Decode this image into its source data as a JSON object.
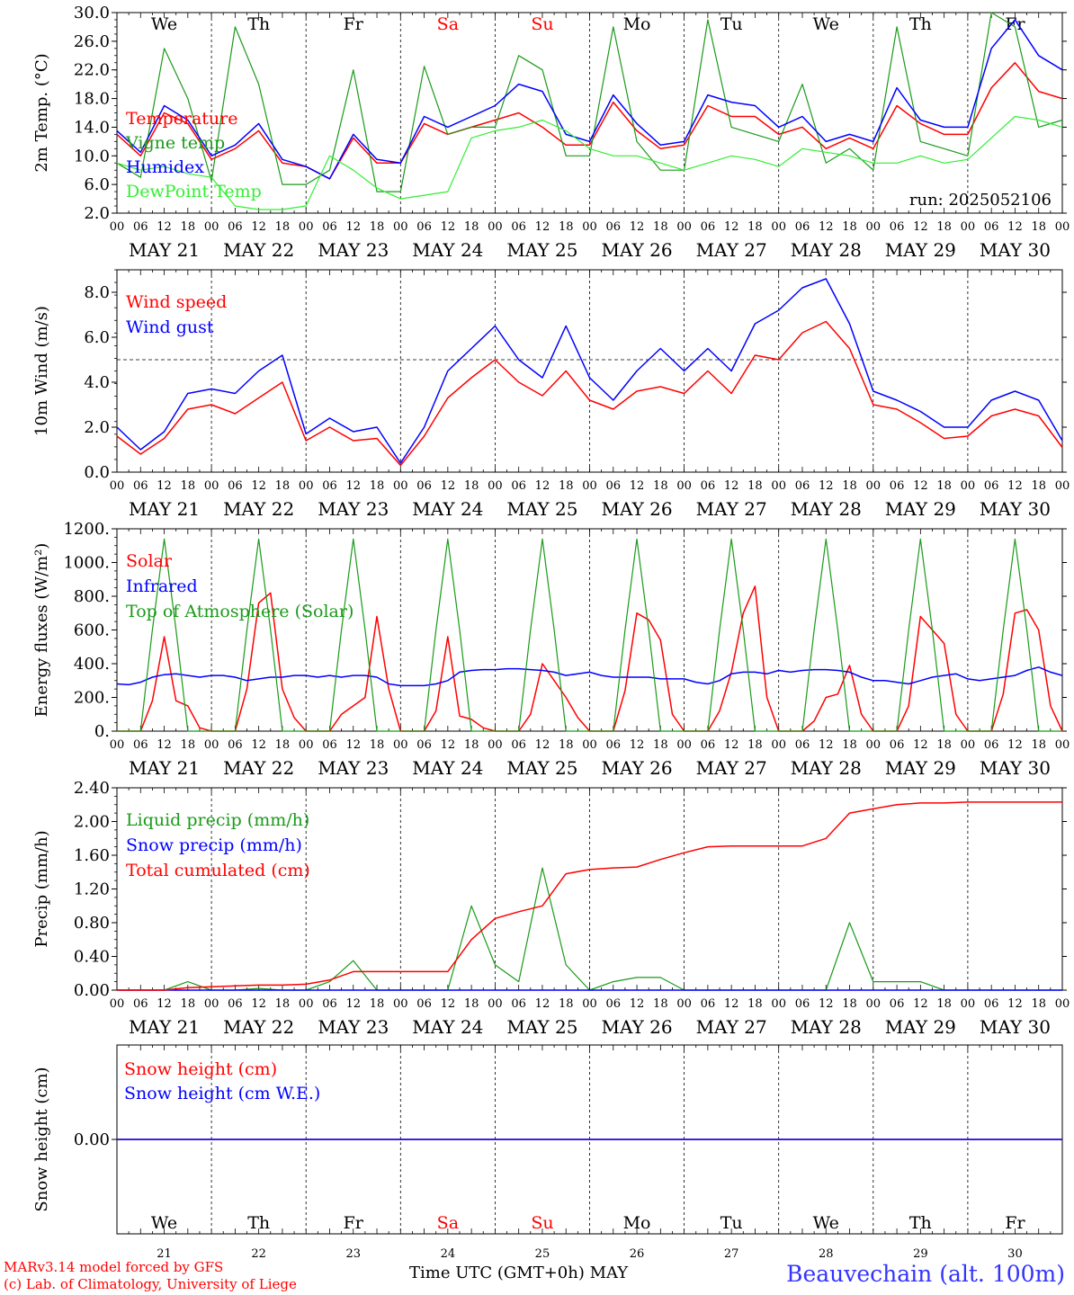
{
  "footer": {
    "credit_line1": "MARv3.14 model forced by GFS",
    "credit_line2": "(c) Lab. of Climatology, University of Liege",
    "time_label": "Time UTC (GMT+0h) MAY",
    "station": "Beauvechain (alt. 100m)"
  },
  "days": {
    "weekdays": [
      "We",
      "Th",
      "Fr",
      "Sa",
      "Su",
      "Mo",
      "Tu",
      "We",
      "Th",
      "Fr"
    ],
    "weekday_colors": [
      "#000000",
      "#000000",
      "#000000",
      "#ff0000",
      "#ff0000",
      "#000000",
      "#000000",
      "#000000",
      "#000000",
      "#000000"
    ],
    "dates": [
      "MAY 21",
      "MAY 22",
      "MAY 23",
      "MAY 24",
      "MAY 25",
      "MAY 26",
      "MAY 27",
      "MAY 28",
      "MAY 29",
      "MAY 30"
    ],
    "day_numbers": [
      "21",
      "22",
      "23",
      "24",
      "25",
      "26",
      "27",
      "28",
      "29",
      "30"
    ],
    "hour_ticks": [
      "00",
      "06",
      "12",
      "18"
    ],
    "final_hour": "00"
  },
  "chart_data": [
    {
      "type": "line",
      "ylabel": "2m Temp. (°C)",
      "ylim": [
        2,
        30
      ],
      "ticks": [
        "2.0",
        "6.0",
        "10.0",
        "14.0",
        "18.0",
        "22.0",
        "26.0",
        "30.0"
      ],
      "annotation": "run: 2025052106",
      "x_hours": [
        0,
        6,
        12,
        18,
        24,
        30,
        36,
        42,
        48,
        54,
        60,
        66,
        72,
        78,
        84,
        90,
        96,
        102,
        108,
        114,
        120,
        126,
        132,
        138,
        144,
        150,
        156,
        162,
        168,
        174,
        180,
        186,
        192,
        198,
        204,
        210,
        216,
        222,
        228,
        234,
        240
      ],
      "series": [
        {
          "name": "Temperature",
          "color": "#ff0000",
          "values": [
            13.0,
            10.0,
            16.0,
            14.5,
            9.5,
            11.0,
            13.5,
            9.0,
            8.5,
            6.8,
            12.5,
            9.0,
            9.0,
            14.5,
            13.0,
            14.0,
            15.0,
            16.0,
            14.0,
            11.5,
            11.5,
            17.5,
            13.5,
            11.0,
            11.5,
            17.0,
            15.5,
            15.5,
            13.0,
            14.0,
            11.0,
            12.5,
            11.0,
            17.0,
            14.5,
            13.0,
            13.0,
            19.5,
            23.0,
            19.0,
            18.0
          ]
        },
        {
          "name": "Vigne temp",
          "color": "#1a9a1a",
          "values": [
            9.0,
            7.0,
            25.0,
            18.0,
            6.5,
            28.0,
            20.0,
            6.0,
            6.0,
            8.0,
            22.0,
            5.0,
            5.0,
            22.5,
            13.0,
            14.0,
            14.0,
            24.0,
            22.0,
            10.0,
            10.0,
            28.0,
            12.0,
            8.0,
            8.0,
            29.0,
            14.0,
            13.0,
            12.0,
            20.0,
            9.0,
            11.0,
            8.0,
            28.0,
            12.0,
            11.0,
            10.0,
            30.0,
            28.0,
            14.0,
            15.0
          ]
        },
        {
          "name": "Humidex",
          "color": "#0000ff",
          "values": [
            13.5,
            10.5,
            17.0,
            15.0,
            10.0,
            11.5,
            14.5,
            9.5,
            8.5,
            6.8,
            13.0,
            9.5,
            9.0,
            15.5,
            14.0,
            15.5,
            17.0,
            20.0,
            19.0,
            13.0,
            12.0,
            18.5,
            14.5,
            11.5,
            12.0,
            18.5,
            17.5,
            17.0,
            14.0,
            15.5,
            12.0,
            13.0,
            12.0,
            19.5,
            15.0,
            14.0,
            14.0,
            25.0,
            29.0,
            24.0,
            22.0
          ]
        },
        {
          "name": "DewPoint Temp",
          "color": "#33ee33",
          "values": [
            9.0,
            8.0,
            8.5,
            7.5,
            7.0,
            3.0,
            2.5,
            2.5,
            3.0,
            10.0,
            8.0,
            5.5,
            4.0,
            4.5,
            5.0,
            12.5,
            13.5,
            14.0,
            15.0,
            13.5,
            11.0,
            10.0,
            10.0,
            9.0,
            8.0,
            9.0,
            10.0,
            9.5,
            8.5,
            11.0,
            10.5,
            10.0,
            9.0,
            9.0,
            10.0,
            9.0,
            9.5,
            12.5,
            15.5,
            15.0,
            14.0
          ]
        }
      ]
    },
    {
      "type": "line",
      "ylabel": "10m Wind (m/s)",
      "ylim": [
        0,
        9
      ],
      "ticks": [
        "0.0",
        "2.0",
        "4.0",
        "6.0",
        "8.0"
      ],
      "reference_line": 5.0,
      "x_hours": [
        0,
        6,
        12,
        18,
        24,
        30,
        36,
        42,
        48,
        54,
        60,
        66,
        72,
        78,
        84,
        90,
        96,
        102,
        108,
        114,
        120,
        126,
        132,
        138,
        144,
        150,
        156,
        162,
        168,
        174,
        180,
        186,
        192,
        198,
        204,
        210,
        216,
        222,
        228,
        234,
        240
      ],
      "series": [
        {
          "name": "Wind speed",
          "color": "#ff0000",
          "values": [
            1.6,
            0.8,
            1.5,
            2.8,
            3.0,
            2.6,
            3.3,
            4.0,
            1.4,
            2.0,
            1.4,
            1.5,
            0.3,
            1.6,
            3.3,
            4.2,
            5.0,
            4.0,
            3.4,
            4.5,
            3.2,
            2.8,
            3.6,
            3.8,
            3.5,
            4.5,
            3.5,
            5.2,
            5.0,
            6.2,
            6.7,
            5.5,
            3.0,
            2.8,
            2.2,
            1.5,
            1.6,
            2.5,
            2.8,
            2.5,
            1.1
          ]
        },
        {
          "name": "Wind gust",
          "color": "#0000ff",
          "values": [
            2.0,
            1.0,
            1.8,
            3.5,
            3.7,
            3.5,
            4.5,
            5.2,
            1.7,
            2.4,
            1.8,
            2.0,
            0.4,
            2.0,
            4.5,
            5.5,
            6.5,
            5.0,
            4.2,
            6.5,
            4.2,
            3.2,
            4.5,
            5.5,
            4.5,
            5.5,
            4.5,
            6.6,
            7.2,
            8.2,
            8.6,
            6.6,
            3.6,
            3.2,
            2.7,
            2.0,
            2.0,
            3.2,
            3.6,
            3.2,
            1.4
          ]
        }
      ]
    },
    {
      "type": "line",
      "ylabel": "Energy fluxes (W/m²)",
      "ylim": [
        0,
        1200
      ],
      "ticks": [
        "0.",
        "200.",
        "400.",
        "600.",
        "800.",
        "1000.",
        "1200."
      ],
      "x_hours": [
        0,
        3,
        6,
        9,
        12,
        15,
        18,
        21,
        24,
        27,
        30,
        33,
        36,
        39,
        42,
        45,
        48,
        51,
        54,
        57,
        60,
        63,
        66,
        69,
        72,
        75,
        78,
        81,
        84,
        87,
        90,
        93,
        96,
        99,
        102,
        105,
        108,
        111,
        114,
        117,
        120,
        123,
        126,
        129,
        132,
        135,
        138,
        141,
        144,
        147,
        150,
        153,
        156,
        159,
        162,
        165,
        168,
        171,
        174,
        177,
        180,
        183,
        186,
        189,
        192,
        195,
        198,
        201,
        204,
        207,
        210,
        213,
        216,
        219,
        222,
        225,
        228,
        231,
        234,
        237,
        240
      ],
      "series": [
        {
          "name": "Solar",
          "color": "#ff0000",
          "values": [
            0,
            0,
            0,
            180,
            560,
            180,
            150,
            20,
            0,
            0,
            0,
            250,
            760,
            820,
            250,
            80,
            0,
            0,
            0,
            100,
            150,
            200,
            680,
            250,
            0,
            0,
            0,
            120,
            560,
            90,
            70,
            20,
            0,
            0,
            0,
            100,
            400,
            300,
            200,
            80,
            0,
            0,
            0,
            240,
            700,
            660,
            540,
            100,
            0,
            0,
            0,
            120,
            350,
            700,
            860,
            200,
            0,
            0,
            0,
            60,
            200,
            220,
            390,
            100,
            0,
            0,
            0,
            150,
            680,
            600,
            520,
            100,
            0,
            0,
            0,
            220,
            700,
            720,
            600,
            150,
            0
          ]
        },
        {
          "name": "Infrared",
          "color": "#0000ff",
          "values": [
            280,
            275,
            290,
            320,
            335,
            340,
            330,
            320,
            330,
            330,
            320,
            300,
            310,
            320,
            320,
            330,
            330,
            320,
            330,
            320,
            330,
            330,
            320,
            280,
            270,
            270,
            270,
            280,
            300,
            350,
            360,
            365,
            365,
            370,
            370,
            365,
            360,
            350,
            330,
            340,
            350,
            330,
            320,
            320,
            320,
            320,
            310,
            310,
            310,
            290,
            280,
            300,
            340,
            350,
            350,
            340,
            360,
            350,
            360,
            365,
            365,
            360,
            350,
            320,
            300,
            300,
            290,
            280,
            300,
            320,
            330,
            340,
            310,
            300,
            310,
            320,
            330,
            360,
            380,
            350,
            330
          ]
        },
        {
          "name": "Top of Atmosphere (Solar)",
          "color": "#1a9a1a",
          "values": [
            0,
            0,
            0,
            600,
            1140,
            600,
            0,
            0,
            0,
            0,
            0,
            600,
            1140,
            600,
            0,
            0,
            0,
            0,
            0,
            600,
            1140,
            600,
            0,
            0,
            0,
            0,
            0,
            600,
            1140,
            600,
            0,
            0,
            0,
            0,
            0,
            600,
            1140,
            600,
            0,
            0,
            0,
            0,
            0,
            600,
            1140,
            600,
            0,
            0,
            0,
            0,
            0,
            600,
            1140,
            600,
            0,
            0,
            0,
            0,
            0,
            600,
            1140,
            600,
            0,
            0,
            0,
            0,
            0,
            600,
            1140,
            600,
            0,
            0,
            0,
            0,
            0,
            600,
            1140,
            600,
            0,
            0,
            0
          ]
        }
      ]
    },
    {
      "type": "line",
      "ylabel": "Precip (mm/h)",
      "ylim": [
        0,
        2.4
      ],
      "ticks": [
        "0.00",
        "0.40",
        "0.80",
        "1.20",
        "1.60",
        "2.00",
        "2.40"
      ],
      "x_hours": [
        0,
        6,
        12,
        18,
        24,
        30,
        36,
        42,
        48,
        54,
        60,
        66,
        72,
        78,
        84,
        90,
        96,
        102,
        108,
        114,
        120,
        126,
        132,
        138,
        144,
        150,
        156,
        162,
        168,
        174,
        180,
        186,
        192,
        198,
        204,
        210,
        216,
        222,
        228,
        234,
        240
      ],
      "series": [
        {
          "name": "Liquid precip (mm/h)",
          "color": "#1a9a1a",
          "values": [
            0,
            0,
            0,
            0.1,
            0,
            0,
            0.02,
            0,
            0,
            0.1,
            0.35,
            0,
            0,
            0,
            0,
            1.0,
            0.3,
            0.1,
            1.45,
            0.3,
            0,
            0.1,
            0.15,
            0.15,
            0,
            0,
            0,
            0,
            0,
            0,
            0,
            0.8,
            0.1,
            0.1,
            0.1,
            0,
            0,
            0,
            0,
            0,
            0
          ]
        },
        {
          "name": "Snow precip (mm/h)",
          "color": "#0000ff",
          "values": [
            0,
            0,
            0,
            0,
            0,
            0,
            0,
            0,
            0,
            0,
            0,
            0,
            0,
            0,
            0,
            0,
            0,
            0,
            0,
            0,
            0,
            0,
            0,
            0,
            0,
            0,
            0,
            0,
            0,
            0,
            0,
            0,
            0,
            0,
            0,
            0,
            0,
            0,
            0,
            0,
            0
          ]
        },
        {
          "name": "Total cumulated (cm)",
          "color": "#ff0000",
          "values": [
            0,
            0,
            0,
            0.03,
            0.04,
            0.05,
            0.06,
            0.06,
            0.07,
            0.12,
            0.22,
            0.22,
            0.22,
            0.22,
            0.22,
            0.6,
            0.85,
            0.93,
            1.0,
            1.38,
            1.43,
            1.45,
            1.46,
            1.55,
            1.63,
            1.7,
            1.71,
            1.71,
            1.71,
            1.71,
            1.8,
            2.1,
            2.15,
            2.2,
            2.22,
            2.22,
            2.23,
            2.23,
            2.23,
            2.23,
            2.23
          ]
        }
      ]
    },
    {
      "type": "line",
      "ylabel": "Snow height (cm)",
      "ylim": [
        -1,
        1
      ],
      "ticks": [
        "0.00"
      ],
      "x_hours": [
        0,
        240
      ],
      "series": [
        {
          "name": "Snow height (cm)",
          "color": "#ff0000",
          "values": [
            0,
            0
          ]
        },
        {
          "name": "Snow height (cm W.E.)",
          "color": "#0000ff",
          "values": [
            0,
            0
          ]
        }
      ]
    }
  ]
}
